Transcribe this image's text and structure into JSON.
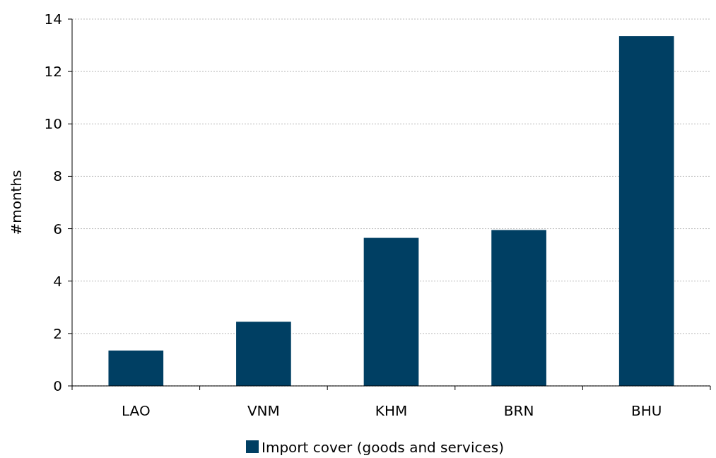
{
  "chart_data": {
    "type": "bar",
    "ylabel": "#months",
    "categories": [
      "LAO",
      "VNM",
      "KHM",
      "BRN",
      "BHU"
    ],
    "series": [
      {
        "name": "Import cover (goods and services)",
        "color": "#003f63",
        "values": [
          1.35,
          2.45,
          5.65,
          5.95,
          13.35
        ]
      }
    ],
    "ylim": [
      0,
      14
    ],
    "yticks": [
      0,
      2,
      4,
      6,
      8,
      10,
      12,
      14
    ],
    "grid": "y",
    "legend": "bottom"
  }
}
